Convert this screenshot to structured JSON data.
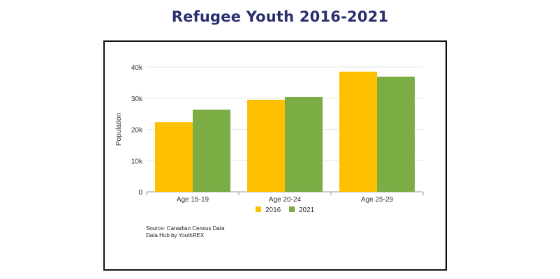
{
  "page": {
    "title": "Refugee Youth 2016-2021",
    "source_lines": [
      "Source: Canadian Census Data",
      "Data Hub by YouthREX"
    ]
  },
  "colors": {
    "title": "#2a2f6e",
    "series_2016": "#ffc000",
    "series_2021": "#7cac44",
    "grid": "#e6e6e6",
    "axis": "#999999"
  },
  "chart_data": {
    "type": "bar",
    "title": "",
    "xlabel": "",
    "ylabel": "Population",
    "categories": [
      "Age 15-19",
      "Age 20-24",
      "Age 25-29"
    ],
    "series": [
      {
        "name": "2016",
        "values": [
          22300,
          29500,
          38500
        ]
      },
      {
        "name": "2021",
        "values": [
          26300,
          30400,
          36900
        ]
      }
    ],
    "ylim": [
      0,
      40000
    ],
    "yticks": [
      0,
      10000,
      20000,
      30000,
      40000
    ],
    "ytick_labels": [
      "0",
      "10k",
      "20k",
      "30k",
      "40k"
    ],
    "grid": true,
    "legend_position": "bottom-center"
  }
}
